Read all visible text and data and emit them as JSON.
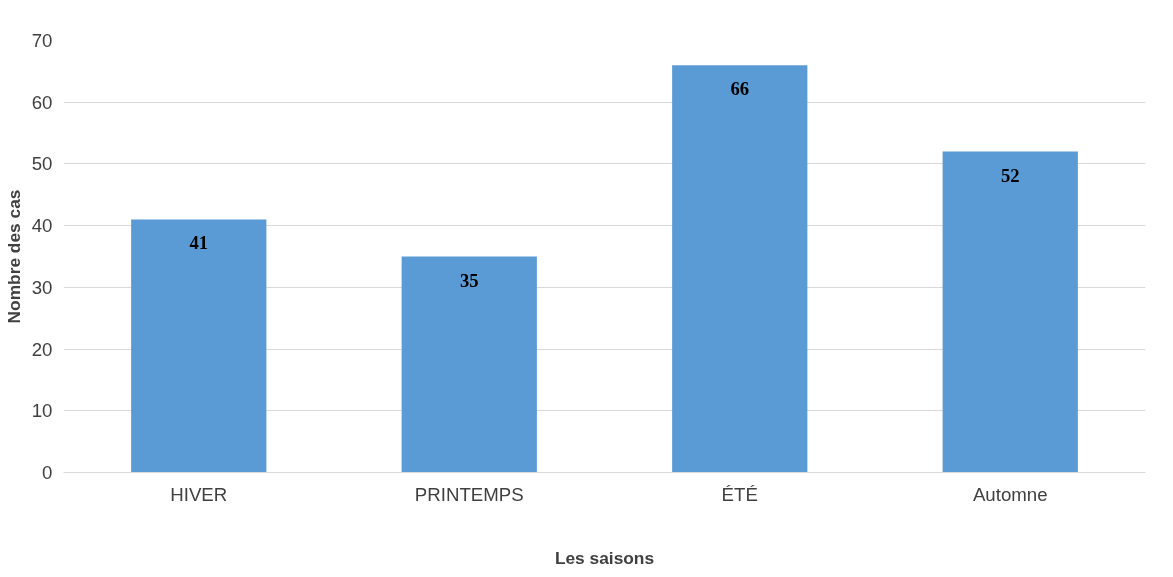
{
  "chart_data": {
    "type": "bar",
    "xlabel": "Les saisons",
    "ylabel": "Nombre des cas",
    "categories": [
      "HIVER",
      "PRINTEMPS",
      "ÉTÉ",
      "Automne"
    ],
    "values": [
      41,
      35,
      66,
      52
    ],
    "color": "#5b9bd5",
    "ylim": [
      0,
      70
    ],
    "yticks": [
      0,
      10,
      20,
      30,
      40,
      50,
      60,
      70
    ],
    "grid": "y",
    "data_labels": true
  }
}
